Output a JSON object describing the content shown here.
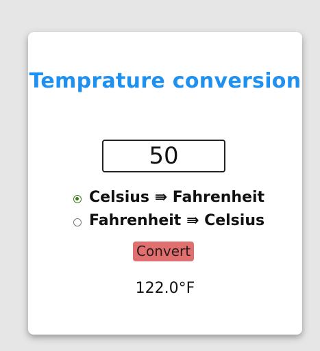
{
  "card": {
    "title": "Temprature conversion",
    "input_value": "50",
    "options": [
      {
        "label": "Celsius ⇛ Fahrenheit",
        "checked": true
      },
      {
        "label": "Fahrenheit ⇛ Celsius",
        "checked": false
      }
    ],
    "convert_label": "Convert",
    "result": "122.0°F"
  },
  "colors": {
    "background": "#e6e6e6",
    "title": "#1e90f0",
    "button": "#e07070",
    "radio_checked": "#3d7d1c"
  }
}
